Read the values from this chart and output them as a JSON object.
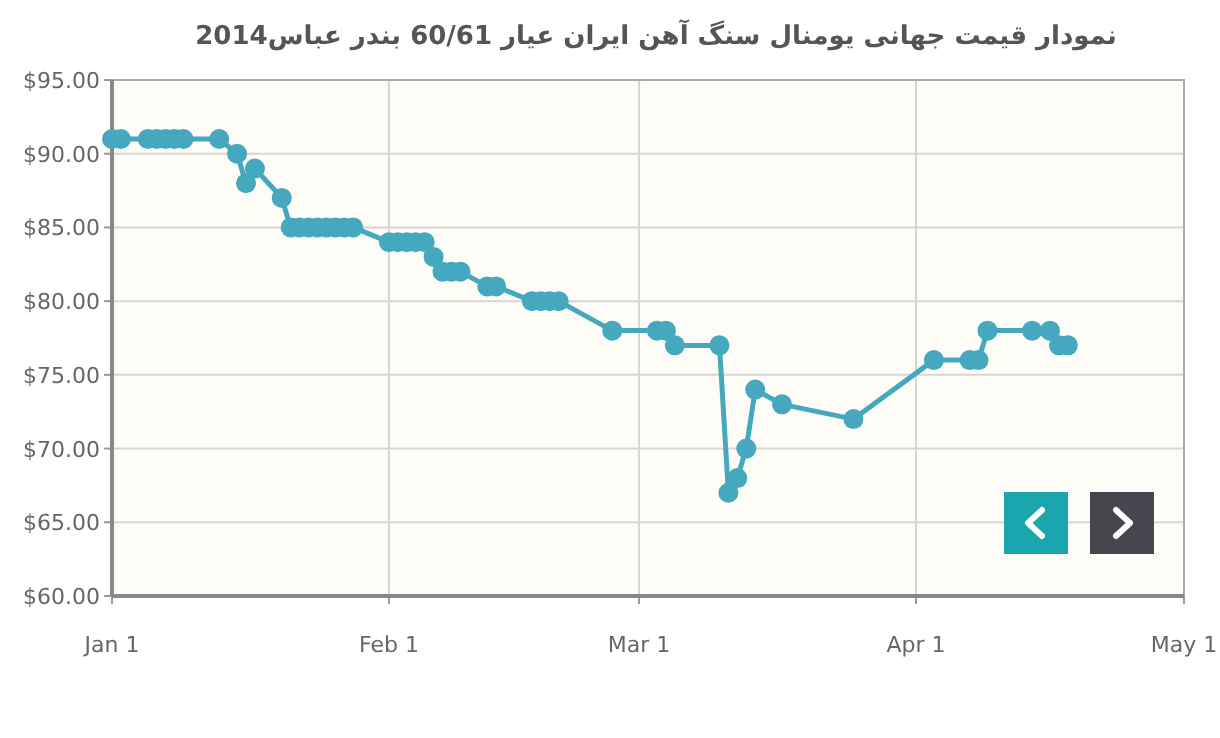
{
  "chart_data": {
    "type": "line",
    "title": "نمودار قیمت جهانی یومنال سنگ آهن ایران عیار 60/61 بندر عباس2014",
    "series": [
      {
        "color": "#45a8be",
        "x": [
          "2014-01-01",
          "2014-01-02",
          "2014-01-05",
          "2014-01-06",
          "2014-01-07",
          "2014-01-08",
          "2014-01-09",
          "2014-01-13",
          "2014-01-15",
          "2014-01-16",
          "2014-01-17",
          "2014-01-20",
          "2014-01-21",
          "2014-01-22",
          "2014-01-23",
          "2014-01-24",
          "2014-01-25",
          "2014-01-26",
          "2014-01-27",
          "2014-01-28",
          "2014-02-01",
          "2014-02-02",
          "2014-02-03",
          "2014-02-04",
          "2014-02-05",
          "2014-02-06",
          "2014-02-07",
          "2014-02-08",
          "2014-02-09",
          "2014-02-12",
          "2014-02-13",
          "2014-02-17",
          "2014-02-18",
          "2014-02-19",
          "2014-02-20",
          "2014-02-26",
          "2014-03-03",
          "2014-03-04",
          "2014-03-05",
          "2014-03-10",
          "2014-03-11",
          "2014-03-12",
          "2014-03-13",
          "2014-03-14",
          "2014-03-17",
          "2014-03-25",
          "2014-04-03",
          "2014-04-07",
          "2014-04-08",
          "2014-04-09",
          "2014-04-14",
          "2014-04-16",
          "2014-04-17",
          "2014-04-18"
        ],
        "values": [
          91,
          91,
          91,
          91,
          91,
          91,
          91,
          91,
          90,
          88,
          89,
          87,
          85,
          85,
          85,
          85,
          85,
          85,
          85,
          85,
          84,
          84,
          84,
          84,
          84,
          83,
          82,
          82,
          82,
          81,
          81,
          80,
          80,
          80,
          80,
          78,
          78,
          78,
          77,
          77,
          67,
          68,
          70,
          74,
          73,
          72,
          76,
          76,
          76,
          78,
          78,
          78,
          77,
          77
        ]
      }
    ],
    "xlim": [
      "2014-01-01",
      "2014-05-01"
    ],
    "xticks": [
      {
        "value": "2014-01-01",
        "label": "Jan 1"
      },
      {
        "value": "2014-02-01",
        "label": "Feb 1"
      },
      {
        "value": "2014-03-01",
        "label": "Mar 1"
      },
      {
        "value": "2014-04-01",
        "label": "Apr 1"
      },
      {
        "value": "2014-05-01",
        "label": "May 1"
      }
    ],
    "ylim": [
      60,
      95
    ],
    "yticks": [
      {
        "value": 60,
        "label": "$60.00"
      },
      {
        "value": 65,
        "label": "$65.00"
      },
      {
        "value": 70,
        "label": "$70.00"
      },
      {
        "value": 75,
        "label": "$75.00"
      },
      {
        "value": 80,
        "label": "$80.00"
      },
      {
        "value": 85,
        "label": "$85.00"
      },
      {
        "value": 90,
        "label": "$90.00"
      },
      {
        "value": 95,
        "label": "$95.00"
      }
    ],
    "grid": true,
    "marker": "circle",
    "line_style": "solid"
  }
}
